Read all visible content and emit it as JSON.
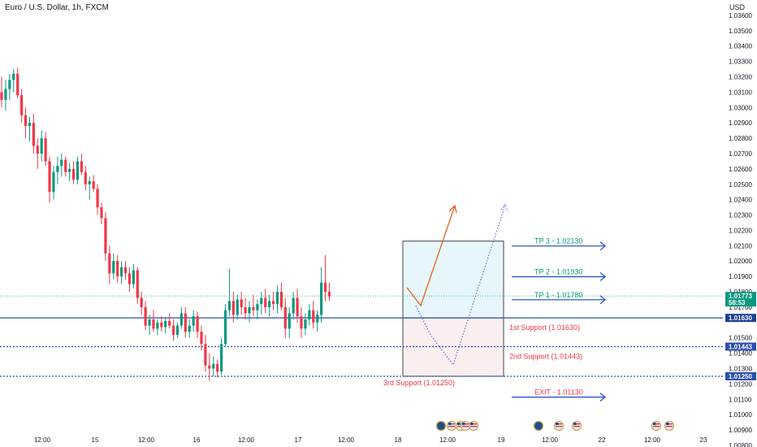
{
  "header": {
    "title": "Euro / U.S. Dollar, 1h, FXCM",
    "currency": "USD"
  },
  "chart_data": {
    "type": "candlestick",
    "symbol": "Euro / U.S. Dollar",
    "interval": "1h",
    "source": "FXCM",
    "ylim": [
      1.008,
      1.037
    ],
    "y_ticks": [
      "1.03600",
      "1.03500",
      "1.03400",
      "1.03300",
      "1.03200",
      "1.03100",
      "1.03000",
      "1.02900",
      "1.02800",
      "1.02700",
      "1.02600",
      "1.02500",
      "1.02400",
      "1.02300",
      "1.02200",
      "1.02100",
      "1.02000",
      "1.01900",
      "1.01800",
      "1.01700",
      "1.01500",
      "1.01400",
      "1.01300",
      "1.01200",
      "1.01100",
      "1.01000",
      "1.00900",
      "1.00800"
    ],
    "x_ticks": [
      {
        "label": "12:00",
        "x": 12
      },
      {
        "label": "15",
        "x": 24
      },
      {
        "label": "12:00",
        "x": 36
      },
      {
        "label": "16",
        "x": 48
      },
      {
        "label": "12:00",
        "x": 60
      },
      {
        "label": "17",
        "x": 72
      },
      {
        "label": "12:00",
        "x": 84
      },
      {
        "label": "18",
        "x": 96
      },
      {
        "label": "12:00",
        "x": 108
      },
      {
        "label": "19",
        "x": 120
      },
      {
        "label": "12:00",
        "x": 132
      },
      {
        "label": "22",
        "x": 144
      },
      {
        "label": "12:00",
        "x": 156
      },
      {
        "label": "23",
        "x": 168
      }
    ],
    "ohlc": [
      [
        1.031,
        1.032,
        1.03,
        1.0305
      ],
      [
        1.0305,
        1.0318,
        1.0298,
        1.0312
      ],
      [
        1.0312,
        1.0322,
        1.0305,
        1.0318
      ],
      [
        1.0318,
        1.0325,
        1.031,
        1.0322
      ],
      [
        1.0322,
        1.0326,
        1.0306,
        1.0308
      ],
      [
        1.0308,
        1.0312,
        1.029,
        1.0295
      ],
      [
        1.0295,
        1.03,
        1.028,
        1.0288
      ],
      [
        1.0288,
        1.0294,
        1.0278,
        1.029
      ],
      [
        1.029,
        1.0296,
        1.027,
        1.0275
      ],
      [
        1.0275,
        1.028,
        1.026,
        1.027
      ],
      [
        1.027,
        1.0285,
        1.0265,
        1.028
      ],
      [
        1.028,
        1.0284,
        1.0262,
        1.0265
      ],
      [
        1.0265,
        1.0268,
        1.0238,
        1.0245
      ],
      [
        1.0245,
        1.0262,
        1.024,
        1.0258
      ],
      [
        1.0258,
        1.0268,
        1.025,
        1.0262
      ],
      [
        1.0262,
        1.027,
        1.0255,
        1.0266
      ],
      [
        1.0266,
        1.0268,
        1.0255,
        1.0258
      ],
      [
        1.0258,
        1.0264,
        1.0252,
        1.026
      ],
      [
        1.026,
        1.0265,
        1.025,
        1.0253
      ],
      [
        1.0253,
        1.0268,
        1.025,
        1.0265
      ],
      [
        1.0265,
        1.027,
        1.0256,
        1.0258
      ],
      [
        1.0258,
        1.0262,
        1.0246,
        1.025
      ],
      [
        1.025,
        1.0255,
        1.024,
        1.0252
      ],
      [
        1.0252,
        1.0256,
        1.0245,
        1.0247
      ],
      [
        1.0247,
        1.025,
        1.023,
        1.0235
      ],
      [
        1.0235,
        1.0238,
        1.0224,
        1.0228
      ],
      [
        1.0228,
        1.0232,
        1.02,
        1.0205
      ],
      [
        1.0205,
        1.021,
        1.0185,
        1.0192
      ],
      [
        1.0192,
        1.0205,
        1.0188,
        1.02
      ],
      [
        1.02,
        1.0204,
        1.0186,
        1.019
      ],
      [
        1.019,
        1.02,
        1.0185,
        1.0196
      ],
      [
        1.0196,
        1.02,
        1.0188,
        1.0192
      ],
      [
        1.0192,
        1.0196,
        1.018,
        1.0185
      ],
      [
        1.0185,
        1.0198,
        1.0182,
        1.0194
      ],
      [
        1.0194,
        1.0196,
        1.0172,
        1.0176
      ],
      [
        1.0176,
        1.018,
        1.0165,
        1.017
      ],
      [
        1.017,
        1.0174,
        1.0155,
        1.0158
      ],
      [
        1.0158,
        1.0165,
        1.0152,
        1.0162
      ],
      [
        1.0162,
        1.0168,
        1.0154,
        1.0156
      ],
      [
        1.0156,
        1.0162,
        1.0152,
        1.016
      ],
      [
        1.016,
        1.0164,
        1.0154,
        1.0157
      ],
      [
        1.0157,
        1.0163,
        1.0153,
        1.0161
      ],
      [
        1.0161,
        1.0166,
        1.0156,
        1.0158
      ],
      [
        1.0158,
        1.0162,
        1.0148,
        1.0152
      ],
      [
        1.0152,
        1.016,
        1.015,
        1.0158
      ],
      [
        1.0158,
        1.017,
        1.0156,
        1.0166
      ],
      [
        1.0166,
        1.017,
        1.015,
        1.0154
      ],
      [
        1.0154,
        1.0162,
        1.015,
        1.0158
      ],
      [
        1.0158,
        1.0168,
        1.0154,
        1.0164
      ],
      [
        1.0164,
        1.0167,
        1.015,
        1.0154
      ],
      [
        1.0154,
        1.0158,
        1.0142,
        1.0146
      ],
      [
        1.0146,
        1.0152,
        1.0128,
        1.0132
      ],
      [
        1.0132,
        1.014,
        1.0122,
        1.013
      ],
      [
        1.013,
        1.0138,
        1.0125,
        1.0133
      ],
      [
        1.0133,
        1.0136,
        1.0124,
        1.0128
      ],
      [
        1.0128,
        1.015,
        1.0126,
        1.0146
      ],
      [
        1.0146,
        1.0172,
        1.0144,
        1.0168
      ],
      [
        1.0168,
        1.0195,
        1.0164,
        1.0174
      ],
      [
        1.0174,
        1.018,
        1.016,
        1.0165
      ],
      [
        1.0165,
        1.0178,
        1.0162,
        1.0175
      ],
      [
        1.0175,
        1.018,
        1.0165,
        1.017
      ],
      [
        1.017,
        1.0176,
        1.0162,
        1.0166
      ],
      [
        1.0166,
        1.0174,
        1.016,
        1.017
      ],
      [
        1.017,
        1.0178,
        1.0164,
        1.0168
      ],
      [
        1.0168,
        1.0175,
        1.0162,
        1.0172
      ],
      [
        1.0172,
        1.018,
        1.0165,
        1.0176
      ],
      [
        1.0176,
        1.0182,
        1.0166,
        1.017
      ],
      [
        1.017,
        1.0178,
        1.0164,
        1.0174
      ],
      [
        1.0174,
        1.018,
        1.0168,
        1.0172
      ],
      [
        1.0172,
        1.0184,
        1.0166,
        1.018
      ],
      [
        1.018,
        1.0186,
        1.0168,
        1.017
      ],
      [
        1.017,
        1.0176,
        1.015,
        1.0156
      ],
      [
        1.0156,
        1.017,
        1.015,
        1.0166
      ],
      [
        1.0166,
        1.018,
        1.0162,
        1.0176
      ],
      [
        1.0176,
        1.0182,
        1.016,
        1.0164
      ],
      [
        1.0164,
        1.017,
        1.015,
        1.0156
      ],
      [
        1.0156,
        1.0166,
        1.0152,
        1.0162
      ],
      [
        1.0162,
        1.0172,
        1.0158,
        1.0168
      ],
      [
        1.0168,
        1.0174,
        1.0156,
        1.016
      ],
      [
        1.016,
        1.0168,
        1.0154,
        1.0165
      ],
      [
        1.0165,
        1.0196,
        1.016,
        1.0186
      ],
      [
        1.0186,
        1.0204,
        1.0174,
        1.018
      ],
      [
        1.018,
        1.0186,
        1.0174,
        1.0177
      ]
    ],
    "current_price": {
      "value": 1.01773,
      "label": "1.01773",
      "countdown": "58:53"
    },
    "support_lines": [
      {
        "label": "1.01630",
        "value": 1.0163,
        "style": "solid"
      },
      {
        "label": "1.01443",
        "value": 1.01443,
        "style": "dotted"
      },
      {
        "label": "1.01250",
        "value": 1.0125,
        "style": "dotted"
      }
    ],
    "annotations": [
      {
        "text": "TP 3 - 1.02130",
        "value": 1.0213,
        "color": "#089981"
      },
      {
        "text": "TP 2 - 1.01930",
        "value": 1.0193,
        "color": "#089981"
      },
      {
        "text": "TP 1 - 1.01780",
        "value": 1.0178,
        "color": "#089981"
      },
      {
        "text": "1st Support (1.01630)",
        "value": 1.0163,
        "color": "#f23645"
      },
      {
        "text": "2nd Support (1.01443)",
        "value": 1.01443,
        "color": "#f23645"
      },
      {
        "text": "3rd Support (1.01250)",
        "value": 1.0125,
        "color": "#f23645"
      },
      {
        "text": "EXIT - 1.01130",
        "value": 1.0113,
        "color": "#f23645"
      }
    ],
    "colors": {
      "up": "#089981",
      "down": "#f23645",
      "support": "#2a4fb1",
      "target_arrow": "#1848cc",
      "projection": "#e0641b",
      "profit_zone": "#e6f6fb",
      "stop_zone": "#fbeeee",
      "price_tag": "#089981"
    }
  }
}
